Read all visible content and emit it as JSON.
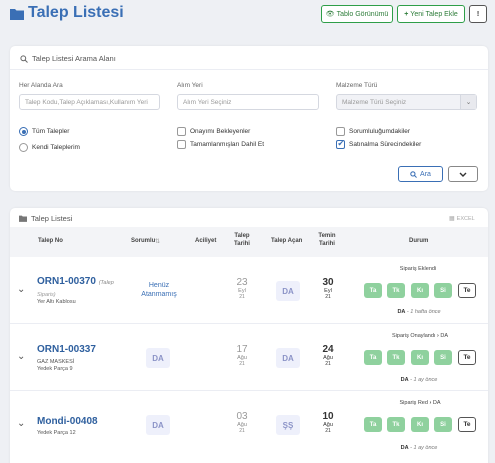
{
  "header": {
    "title": "Talep Listesi",
    "buttons": {
      "table_view": "Tablo Görünümü",
      "new_request": "Yeni Talep Ekle",
      "more": "!"
    }
  },
  "search": {
    "title": "Talep Listesi Arama Alanı",
    "fields": {
      "any_field": {
        "label": "Her Alanda Ara",
        "placeholder": "Talep Kodu,Talep Açıklaması,Kullanım Yeri"
      },
      "location": {
        "label": "Alım Yeri",
        "placeholder": "Alım Yeri Seçiniz"
      },
      "material": {
        "label": "Malzeme Türü",
        "placeholder": "Malzeme Türü Seçiniz"
      }
    },
    "options": {
      "all": "Tüm Talepler",
      "mine": "Kendi Taleplerim",
      "pending_approval": "Onayımı Bekleyenler",
      "include_completed": "Tamamlanmışları Dahil Et",
      "my_responsibility": "Sorumluluğumdakiler",
      "purchasing": "Satınalma Sürecindekiler"
    },
    "search_button": "Ara",
    "dropdown_caret": "⌄"
  },
  "list": {
    "title": "Talep Listesi",
    "excel": "EXCEL",
    "columns": {
      "no": "Talep No",
      "owner": "Sorumlu",
      "priority": "Aciliyet",
      "date": [
        "Talep",
        "Tarihi"
      ],
      "opener": "Talep Açan",
      "due": [
        "Temin",
        "Tarihi"
      ],
      "status": "Durum"
    },
    "rows": [
      {
        "code": "ORN1-00370",
        "code_note": "(Talep",
        "note": "Siparis)",
        "place": "Yer Altı Kablosu",
        "owner_text": [
          "Henüz",
          "Atanmamış"
        ],
        "date": {
          "d": "23",
          "m": "Eyl",
          "y": "21"
        },
        "opener": "DA",
        "due": {
          "d": "30",
          "m": "Eyl",
          "y": "21"
        },
        "status": "Sipariş Eklendi",
        "status_owner": "",
        "pills": [
          "Ta",
          "Tk",
          "Kı",
          "Si"
        ],
        "te": "Te",
        "foot_user": "DA",
        "foot_time": "- 1 hafta önce"
      },
      {
        "code": "ORN1-00337",
        "note": "GAZ MASKESİ",
        "place": "Yedek Parça 9",
        "owner_avatar": "DA",
        "date": {
          "d": "17",
          "m": "Ağu",
          "y": "21"
        },
        "opener": "DA",
        "due": {
          "d": "24",
          "m": "Ağu",
          "y": "21"
        },
        "status": "Sipariş Onaylandı",
        "status_owner": "DA",
        "pills": [
          "Ta",
          "Tk",
          "Kı",
          "Si"
        ],
        "te": "Te",
        "foot_user": "DA",
        "foot_time": "- 1 ay önce"
      },
      {
        "code": "Mondi-00408",
        "place": "Yedek Parça 12",
        "owner_avatar": "DA",
        "date": {
          "d": "03",
          "m": "Ağu",
          "y": "21"
        },
        "opener": "ŞŞ",
        "due": {
          "d": "10",
          "m": "Ağu",
          "y": "21"
        },
        "status": "Sipariş Red",
        "status_owner": "DA",
        "pills": [
          "Ta",
          "Tk",
          "Kı",
          "Si"
        ],
        "te": "Te",
        "foot_user": "DA",
        "foot_time": "- 1 ay önce"
      }
    ]
  },
  "colors": {
    "accent": "#3a6fb5",
    "green": "#2e9e48",
    "pill": "#8fd19e"
  }
}
